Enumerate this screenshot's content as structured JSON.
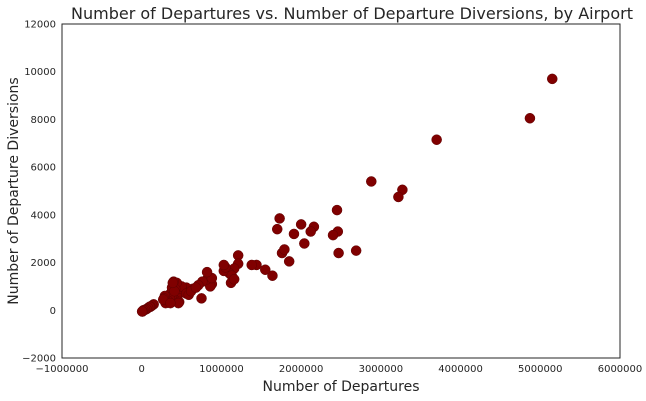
{
  "chart_data": {
    "type": "scatter",
    "title": "Number of Departures vs. Number of Departure Diversions, by Airport",
    "xlabel": "Number of Departures",
    "ylabel": "Number of Departure Diversions",
    "xlim": [
      -1000000,
      6000000
    ],
    "ylim": [
      -2000,
      12000
    ],
    "x_ticks": [
      -1000000,
      0,
      1000000,
      2000000,
      3000000,
      4000000,
      5000000,
      6000000
    ],
    "x_tick_labels": [
      "−1000000",
      "0",
      "1000000",
      "2000000",
      "3000000",
      "4000000",
      "5000000",
      "6000000"
    ],
    "y_ticks": [
      -2000,
      0,
      2000,
      4000,
      6000,
      8000,
      10000,
      12000
    ],
    "y_tick_labels": [
      "−2000",
      "0",
      "2000",
      "4000",
      "6000",
      "8000",
      "10000",
      "12000"
    ],
    "grid": false,
    "point_color": "#800000",
    "x": [
      5150000,
      4870000,
      3700000,
      3270000,
      3220000,
      2880000,
      2450000,
      2460000,
      2400000,
      2690000,
      2470000,
      1730000,
      1700000,
      2000000,
      2160000,
      2120000,
      2040000,
      1910000,
      1850000,
      1760000,
      1790000,
      1640000,
      1550000,
      1440000,
      1380000,
      1210000,
      1210000,
      1160000,
      1100000,
      1030000,
      1050000,
      1030000,
      1130000,
      1120000,
      1160000,
      880000,
      860000,
      820000,
      880000,
      820000,
      760000,
      710000,
      640000,
      600000,
      560000,
      520000,
      470000,
      440000,
      400000,
      380000,
      360000,
      350000,
      330000,
      310000,
      300000,
      290000,
      280000,
      270000,
      470000,
      480000,
      500000,
      440000,
      420000,
      400000,
      380000,
      410000,
      560000,
      590000,
      620000,
      680000,
      750000,
      460000,
      360000,
      390000,
      150000,
      130000,
      110000,
      100000,
      80000,
      60000,
      40000,
      20000,
      10000,
      5000
    ],
    "y": [
      9700,
      8050,
      7150,
      5050,
      4750,
      5400,
      4200,
      3300,
      3150,
      2500,
      2400,
      3850,
      3400,
      3600,
      3500,
      3300,
      2800,
      3200,
      2050,
      2400,
      2550,
      1450,
      1700,
      1900,
      1900,
      2300,
      1950,
      1750,
      1550,
      1650,
      1800,
      1900,
      1450,
      1150,
      1300,
      1100,
      1000,
      1300,
      1350,
      1600,
      1200,
      1050,
      900,
      850,
      950,
      800,
      700,
      650,
      500,
      600,
      700,
      550,
      400,
      350,
      300,
      600,
      500,
      450,
      350,
      900,
      1000,
      1150,
      900,
      1200,
      950,
      800,
      700,
      650,
      800,
      950,
      500,
      300,
      300,
      1150,
      250,
      200,
      150,
      150,
      100,
      50,
      20,
      0,
      -50,
      -50
    ]
  }
}
